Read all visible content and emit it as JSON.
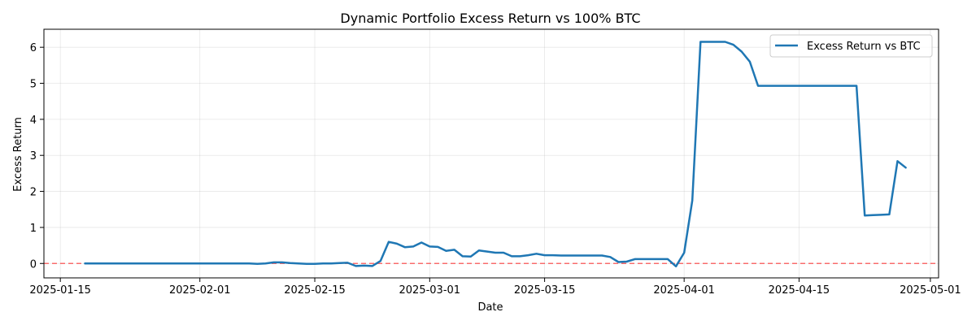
{
  "chart_data": {
    "type": "line",
    "title": "Dynamic Portfolio Excess Return vs 100% BTC",
    "xlabel": "Date",
    "ylabel": "Excess Return",
    "xlim": [
      "2025-01-13",
      "2025-05-02"
    ],
    "ylim": [
      -0.4,
      6.5
    ],
    "x_ticks": [
      "2025-01-15",
      "2025-02-01",
      "2025-02-15",
      "2025-03-01",
      "2025-03-15",
      "2025-04-01",
      "2025-04-15",
      "2025-05-01"
    ],
    "y_ticks": [
      0,
      1,
      2,
      3,
      4,
      5,
      6
    ],
    "grid": true,
    "legend": {
      "position": "top-right",
      "entries": [
        "Excess Return vs BTC"
      ]
    },
    "reference_line": {
      "y": 0,
      "color": "#ff0000",
      "style": "dashed"
    },
    "series": [
      {
        "name": "Excess Return vs BTC",
        "color": "#1f77b4",
        "points": [
          [
            "2025-01-18",
            0.0
          ],
          [
            "2025-01-19",
            0.0
          ],
          [
            "2025-01-20",
            0.0
          ],
          [
            "2025-01-21",
            0.0
          ],
          [
            "2025-01-22",
            0.0
          ],
          [
            "2025-01-23",
            0.0
          ],
          [
            "2025-01-24",
            0.0
          ],
          [
            "2025-01-25",
            0.0
          ],
          [
            "2025-01-26",
            0.0
          ],
          [
            "2025-01-27",
            0.0
          ],
          [
            "2025-01-28",
            0.0
          ],
          [
            "2025-01-29",
            0.0
          ],
          [
            "2025-01-30",
            0.0
          ],
          [
            "2025-01-31",
            0.0
          ],
          [
            "2025-02-01",
            0.0
          ],
          [
            "2025-02-02",
            0.0
          ],
          [
            "2025-02-03",
            0.0
          ],
          [
            "2025-02-04",
            0.0
          ],
          [
            "2025-02-05",
            0.0
          ],
          [
            "2025-02-06",
            0.0
          ],
          [
            "2025-02-07",
            0.0
          ],
          [
            "2025-02-08",
            -0.01
          ],
          [
            "2025-02-09",
            0.0
          ],
          [
            "2025-02-10",
            0.03
          ],
          [
            "2025-02-11",
            0.03
          ],
          [
            "2025-02-12",
            0.01
          ],
          [
            "2025-02-13",
            0.0
          ],
          [
            "2025-02-14",
            -0.01
          ],
          [
            "2025-02-15",
            -0.01
          ],
          [
            "2025-02-16",
            0.0
          ],
          [
            "2025-02-17",
            0.0
          ],
          [
            "2025-02-18",
            0.01
          ],
          [
            "2025-02-19",
            0.02
          ],
          [
            "2025-02-20",
            -0.07
          ],
          [
            "2025-02-21",
            -0.06
          ],
          [
            "2025-02-22",
            -0.07
          ],
          [
            "2025-02-23",
            0.07
          ],
          [
            "2025-02-24",
            0.6
          ],
          [
            "2025-02-25",
            0.55
          ],
          [
            "2025-02-26",
            0.45
          ],
          [
            "2025-02-27",
            0.47
          ],
          [
            "2025-02-28",
            0.58
          ],
          [
            "2025-03-01",
            0.47
          ],
          [
            "2025-03-02",
            0.46
          ],
          [
            "2025-03-03",
            0.35
          ],
          [
            "2025-03-04",
            0.38
          ],
          [
            "2025-03-05",
            0.2
          ],
          [
            "2025-03-06",
            0.19
          ],
          [
            "2025-03-07",
            0.36
          ],
          [
            "2025-03-08",
            0.33
          ],
          [
            "2025-03-09",
            0.3
          ],
          [
            "2025-03-10",
            0.3
          ],
          [
            "2025-03-11",
            0.2
          ],
          [
            "2025-03-12",
            0.2
          ],
          [
            "2025-03-13",
            0.23
          ],
          [
            "2025-03-14",
            0.27
          ],
          [
            "2025-03-15",
            0.23
          ],
          [
            "2025-03-16",
            0.23
          ],
          [
            "2025-03-17",
            0.22
          ],
          [
            "2025-03-18",
            0.22
          ],
          [
            "2025-03-19",
            0.22
          ],
          [
            "2025-03-20",
            0.22
          ],
          [
            "2025-03-21",
            0.22
          ],
          [
            "2025-03-22",
            0.22
          ],
          [
            "2025-03-23",
            0.18
          ],
          [
            "2025-03-24",
            0.04
          ],
          [
            "2025-03-25",
            0.05
          ],
          [
            "2025-03-26",
            0.12
          ],
          [
            "2025-03-27",
            0.12
          ],
          [
            "2025-03-28",
            0.12
          ],
          [
            "2025-03-29",
            0.12
          ],
          [
            "2025-03-30",
            0.12
          ],
          [
            "2025-03-31",
            -0.08
          ],
          [
            "2025-04-01",
            0.3
          ],
          [
            "2025-04-02",
            1.75
          ],
          [
            "2025-04-03",
            6.15
          ],
          [
            "2025-04-04",
            6.15
          ],
          [
            "2025-04-05",
            6.15
          ],
          [
            "2025-04-06",
            6.15
          ],
          [
            "2025-04-07",
            6.07
          ],
          [
            "2025-04-08",
            5.88
          ],
          [
            "2025-04-09",
            5.6
          ],
          [
            "2025-04-10",
            4.93
          ],
          [
            "2025-04-11",
            4.93
          ],
          [
            "2025-04-12",
            4.93
          ],
          [
            "2025-04-13",
            4.93
          ],
          [
            "2025-04-14",
            4.93
          ],
          [
            "2025-04-15",
            4.93
          ],
          [
            "2025-04-16",
            4.93
          ],
          [
            "2025-04-17",
            4.93
          ],
          [
            "2025-04-18",
            4.93
          ],
          [
            "2025-04-19",
            4.93
          ],
          [
            "2025-04-20",
            4.93
          ],
          [
            "2025-04-21",
            4.93
          ],
          [
            "2025-04-22",
            4.93
          ],
          [
            "2025-04-23",
            1.33
          ],
          [
            "2025-04-24",
            1.34
          ],
          [
            "2025-04-25",
            1.35
          ],
          [
            "2025-04-26",
            1.36
          ],
          [
            "2025-04-27",
            2.84
          ],
          [
            "2025-04-28",
            2.66
          ]
        ]
      }
    ]
  }
}
